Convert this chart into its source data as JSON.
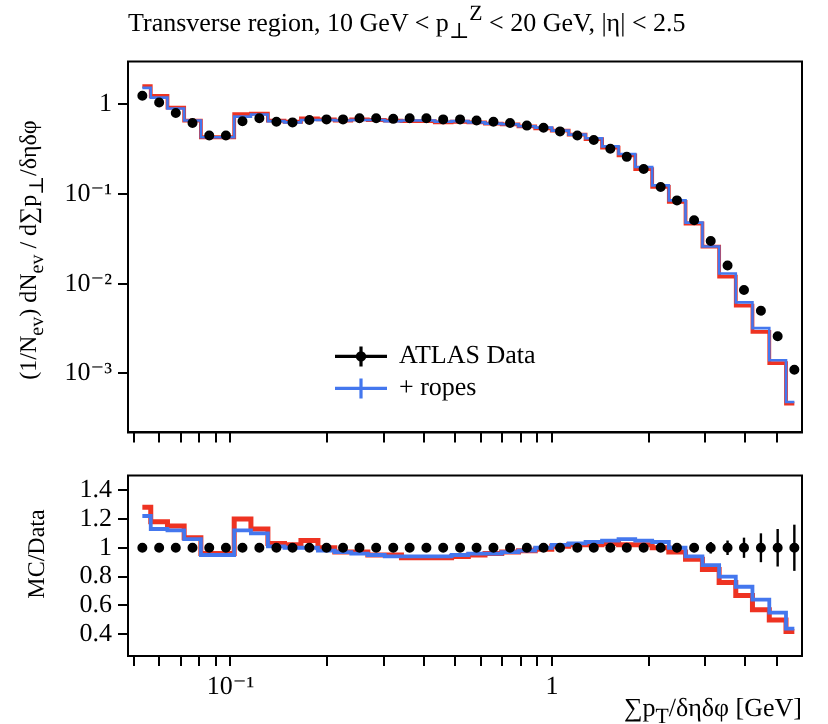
{
  "chart_data": [
    {
      "type": "step",
      "title": "Transverse region, 10 GeV < p$_{⊥}$$^{Z}$ < 20 GeV, |η| < 2.5",
      "ylabel": "(1/N$_{ev}$) dN$_{ev}$ / d∑p$_{⊥}$/δηδφ",
      "log": "xy",
      "legend": "bottom",
      "tick_labels": "y",
      "xlim": [
        0.048,
        6
      ],
      "ylim": [
        0.00022,
        3
      ],
      "xticks": [
        {
          "value": 0.05,
          "label": null
        },
        {
          "value": 0.06,
          "label": null
        },
        {
          "value": 0.07,
          "label": null
        },
        {
          "value": 0.08,
          "label": null
        },
        {
          "value": 0.09,
          "label": null
        },
        {
          "value": 0.1,
          "label": null
        },
        {
          "value": 0.2,
          "label": null
        },
        {
          "value": 0.3,
          "label": null
        },
        {
          "value": 0.4,
          "label": null
        },
        {
          "value": 0.5,
          "label": null
        },
        {
          "value": 0.6,
          "label": null
        },
        {
          "value": 0.7,
          "label": null
        },
        {
          "value": 0.8,
          "label": null
        },
        {
          "value": 0.9,
          "label": null
        },
        {
          "value": 1,
          "label": null
        },
        {
          "value": 2,
          "label": null
        },
        {
          "value": 3,
          "label": null
        },
        {
          "value": 4,
          "label": null
        },
        {
          "value": 5,
          "label": null
        }
      ],
      "yticks": [
        {
          "value": 0.001,
          "label": "10⁻³"
        },
        {
          "value": 0.01,
          "label": "10⁻²"
        },
        {
          "value": 0.1,
          "label": "10⁻¹"
        },
        1
      ],
      "x": [
        0.0532,
        0.06,
        0.0676,
        0.0762,
        0.0859,
        0.0968,
        0.109,
        0.123,
        0.139,
        0.156,
        0.176,
        0.199,
        0.224,
        0.252,
        0.284,
        0.321,
        0.361,
        0.407,
        0.459,
        0.518,
        0.583,
        0.658,
        0.741,
        0.836,
        0.942,
        1.06,
        1.2,
        1.35,
        1.52,
        1.71,
        1.93,
        2.18,
        2.45,
        2.77,
        3.12,
        3.52,
        3.96,
        4.47,
        5.04,
        5.68
      ],
      "series": [
        {
          "name": "ATLAS Data",
          "type": "scatter",
          "marker": "circle",
          "color": "#000000",
          "values": [
            1.25,
            1.05,
            0.8,
            0.62,
            0.45,
            0.45,
            0.65,
            0.7,
            0.64,
            0.63,
            0.67,
            0.68,
            0.68,
            0.7,
            0.7,
            0.69,
            0.7,
            0.7,
            0.68,
            0.68,
            0.66,
            0.64,
            0.62,
            0.58,
            0.55,
            0.5,
            0.45,
            0.4,
            0.32,
            0.26,
            0.19,
            0.12,
            0.085,
            0.051,
            0.03,
            0.016,
            0.0085,
            0.005,
            0.0026,
            0.0011
          ]
        },
        {
          "color": "#ee3322",
          "values": [
            1.6,
            1.24,
            0.92,
            0.66,
            0.43,
            0.43,
            0.78,
            0.79,
            0.66,
            0.64,
            0.7,
            0.68,
            0.66,
            0.68,
            0.67,
            0.66,
            0.65,
            0.65,
            0.63,
            0.64,
            0.63,
            0.61,
            0.6,
            0.57,
            0.54,
            0.51,
            0.46,
            0.41,
            0.33,
            0.27,
            0.19,
            0.12,
            0.082,
            0.047,
            0.026,
            0.012,
            0.0057,
            0.0029,
            0.0013,
            0.00046
          ]
        },
        {
          "name": "+ ropes",
          "color": "#4477ee",
          "values": [
            1.53,
            1.19,
            0.9,
            0.66,
            0.43,
            0.43,
            0.73,
            0.77,
            0.65,
            0.63,
            0.67,
            0.67,
            0.66,
            0.67,
            0.67,
            0.65,
            0.66,
            0.66,
            0.64,
            0.65,
            0.63,
            0.61,
            0.6,
            0.57,
            0.55,
            0.51,
            0.46,
            0.42,
            0.34,
            0.28,
            0.2,
            0.125,
            0.085,
            0.048,
            0.026,
            0.013,
            0.0062,
            0.0032,
            0.0014,
            0.00048
          ]
        }
      ]
    },
    {
      "type": "step",
      "xlabel": "∑p$_{T}$/δηδφ [GeV]",
      "ylabel": "MC/Data",
      "log": "x",
      "xlim": [
        0.048,
        6
      ],
      "ylim": [
        0.25,
        1.5
      ],
      "xticks": [
        {
          "value": 0.05,
          "label": null
        },
        {
          "value": 0.06,
          "label": null
        },
        {
          "value": 0.07,
          "label": null
        },
        {
          "value": 0.08,
          "label": null
        },
        {
          "value": 0.09,
          "label": null
        },
        {
          "value": 0.1,
          "label": "10⁻¹"
        },
        {
          "value": 0.2,
          "label": null
        },
        {
          "value": 0.3,
          "label": null
        },
        {
          "value": 0.4,
          "label": null
        },
        {
          "value": 0.5,
          "label": null
        },
        {
          "value": 0.6,
          "label": null
        },
        {
          "value": 0.7,
          "label": null
        },
        {
          "value": 0.8,
          "label": null
        },
        {
          "value": 0.9,
          "label": null
        },
        1,
        {
          "value": 2,
          "label": null
        },
        {
          "value": 3,
          "label": null
        },
        {
          "value": 4,
          "label": null
        },
        {
          "value": 5,
          "label": null
        }
      ],
      "yticks": [
        0.4,
        0.6,
        0.8,
        1,
        1.2,
        1.4
      ],
      "x": [
        0.0532,
        0.06,
        0.0676,
        0.0762,
        0.0859,
        0.0968,
        0.109,
        0.123,
        0.139,
        0.156,
        0.176,
        0.199,
        0.224,
        0.252,
        0.284,
        0.321,
        0.361,
        0.407,
        0.459,
        0.518,
        0.583,
        0.658,
        0.741,
        0.836,
        0.942,
        1.06,
        1.2,
        1.35,
        1.52,
        1.71,
        1.93,
        2.18,
        2.45,
        2.77,
        3.12,
        3.52,
        3.96,
        4.47,
        5.04,
        5.68
      ],
      "series": [
        {
          "color": "#ee3322",
          "values": [
            1.28,
            1.18,
            1.15,
            1.07,
            0.96,
            0.96,
            1.2,
            1.13,
            1.03,
            1.02,
            1.05,
            1.0,
            0.97,
            0.97,
            0.95,
            0.95,
            0.93,
            0.93,
            0.93,
            0.94,
            0.95,
            0.96,
            0.97,
            0.98,
            0.99,
            1.01,
            1.02,
            1.02,
            1.03,
            1.02,
            1.02,
            1.0,
            0.97,
            0.92,
            0.85,
            0.76,
            0.67,
            0.57,
            0.5,
            0.42
          ]
        },
        {
          "color": "#4477ee",
          "values": [
            1.22,
            1.13,
            1.12,
            1.06,
            0.95,
            0.95,
            1.12,
            1.1,
            1.01,
            1.0,
            1.0,
            0.98,
            0.97,
            0.96,
            0.95,
            0.94,
            0.94,
            0.94,
            0.94,
            0.95,
            0.96,
            0.96,
            0.97,
            0.98,
            1.0,
            1.02,
            1.03,
            1.04,
            1.05,
            1.06,
            1.05,
            1.04,
            1.0,
            0.94,
            0.88,
            0.8,
            0.73,
            0.64,
            0.55,
            0.44
          ]
        },
        {
          "type": "scatter",
          "marker": "circle",
          "color": "#000000",
          "values": [
            1,
            1,
            1,
            1,
            1,
            1,
            1,
            1,
            1,
            1,
            1,
            1,
            1,
            1,
            1,
            1,
            1,
            1,
            1,
            1,
            1,
            1,
            1,
            1,
            1,
            1,
            1,
            1,
            1,
            1,
            1,
            1,
            1,
            1,
            1,
            1,
            1,
            1,
            1,
            1
          ],
          "errors": [
            0.02,
            0.02,
            0.02,
            0.02,
            0.02,
            0.02,
            0.02,
            0.02,
            0.02,
            0.02,
            0.02,
            0.02,
            0.02,
            0.02,
            0.02,
            0.02,
            0.02,
            0.02,
            0.02,
            0.02,
            0.02,
            0.02,
            0.02,
            0.02,
            0.02,
            0.02,
            0.02,
            0.02,
            0.02,
            0.02,
            0.02,
            0.02,
            0.03,
            0.03,
            0.04,
            0.05,
            0.07,
            0.1,
            0.13,
            0.16
          ]
        }
      ]
    }
  ]
}
